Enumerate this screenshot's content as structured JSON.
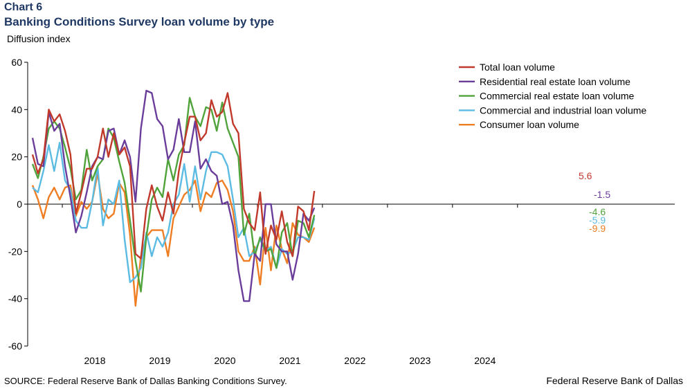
{
  "header": {
    "chart_number": "Chart 6",
    "title": "Banking Conditions Survey loan volume by type",
    "y_unit": "Diffusion index"
  },
  "footer": {
    "source": "SOURCE: Federal Reserve Bank of Dallas Banking Conditions Survey.",
    "credit": "Federal Reserve Bank of Dallas"
  },
  "chart_data": {
    "type": "line",
    "title": "Banking Conditions Survey loan volume by type",
    "ylabel": "Diffusion index",
    "ylim": [
      -60,
      60
    ],
    "yticks": [
      60,
      40,
      20,
      0,
      -20,
      -40,
      -60
    ],
    "xticks": [
      "2018",
      "2019",
      "2020",
      "2021",
      "2022",
      "2023",
      "2024"
    ],
    "grid": false,
    "legend_position": "top-right",
    "x_start": "2017-07",
    "frequency": "monthly",
    "series": [
      {
        "name": "Total loan volume",
        "color": "#c0392b",
        "end_label": "5.6",
        "values": [
          21,
          13,
          19,
          40,
          35,
          38,
          31,
          21,
          -4,
          5,
          15,
          15,
          20,
          32,
          20,
          30,
          21,
          24,
          16,
          -21,
          -23,
          -2,
          8,
          -1,
          -7,
          5,
          -4,
          14,
          26,
          37,
          37,
          27,
          30,
          44,
          37,
          39,
          47,
          34,
          30,
          -2,
          -8,
          -11,
          5,
          -21,
          -9,
          -15,
          -3,
          -16,
          -22,
          -1,
          -3,
          -11,
          5.6
        ]
      },
      {
        "name": "Residential real estate loan volume",
        "color": "#6a3d9a",
        "end_label": "-1.5",
        "values": [
          28,
          17,
          16,
          39,
          31,
          34,
          16,
          3,
          -12,
          -5,
          5,
          16,
          20,
          19,
          31,
          32,
          21,
          27,
          20,
          1,
          32,
          48,
          47,
          36,
          33,
          19,
          23,
          36,
          22,
          22,
          35,
          15,
          19,
          14,
          12,
          0,
          1,
          -9,
          -28,
          -41,
          -41,
          -21,
          -24,
          0,
          0,
          -17,
          -20,
          -20,
          -32,
          -21,
          -4,
          -7,
          -1.5
        ]
      },
      {
        "name": "Commercial real estate loan volume",
        "color": "#4fa33a",
        "end_label": "-4.6",
        "values": [
          17,
          11,
          20,
          32,
          35,
          32,
          24,
          15,
          2,
          6,
          23,
          10,
          16,
          19,
          32,
          28,
          18,
          9,
          -7,
          -24,
          -37,
          -14,
          2,
          7,
          3,
          19,
          10,
          21,
          25,
          45,
          37,
          33,
          41,
          40,
          31,
          43,
          32,
          26,
          20,
          -13,
          -4,
          -22,
          -14,
          -20,
          -19,
          -27,
          -12,
          -8,
          -22,
          -7,
          -8,
          -14,
          -4.6
        ]
      },
      {
        "name": "Commercial and industrial loan volume",
        "color": "#5bbbe2",
        "end_label": "-5.9",
        "values": [
          7,
          5,
          14,
          25,
          14,
          26,
          10,
          6,
          -7,
          -10,
          -10,
          1,
          16,
          -9,
          2,
          0,
          10,
          -15,
          -33,
          -31,
          -27,
          -12,
          -22,
          -14,
          -18,
          -12,
          0,
          4,
          17,
          1,
          16,
          2,
          14,
          22,
          22,
          21,
          16,
          2,
          -14,
          -10,
          -22,
          -20,
          -15,
          -20,
          -18,
          -27,
          -19,
          -21,
          -20,
          -14,
          -14,
          -15,
          -5.9
        ]
      },
      {
        "name": "Consumer loan volume",
        "color": "#ef7d22",
        "end_label": "-9.9",
        "values": [
          8,
          2,
          -6,
          3,
          7,
          2,
          7,
          8,
          -5,
          1,
          -2,
          1,
          13,
          -2,
          -6,
          -4,
          9,
          5,
          -13,
          -43,
          -22,
          -14,
          -11,
          -11,
          -11,
          -22,
          -6,
          -1,
          4,
          6,
          10,
          -3,
          5,
          3,
          9,
          10,
          6,
          -3,
          -20,
          -24,
          -24,
          -18,
          -34,
          -10,
          -28,
          -9,
          -19,
          -25,
          -8,
          -13,
          -14,
          -16,
          -9.9
        ]
      }
    ]
  }
}
